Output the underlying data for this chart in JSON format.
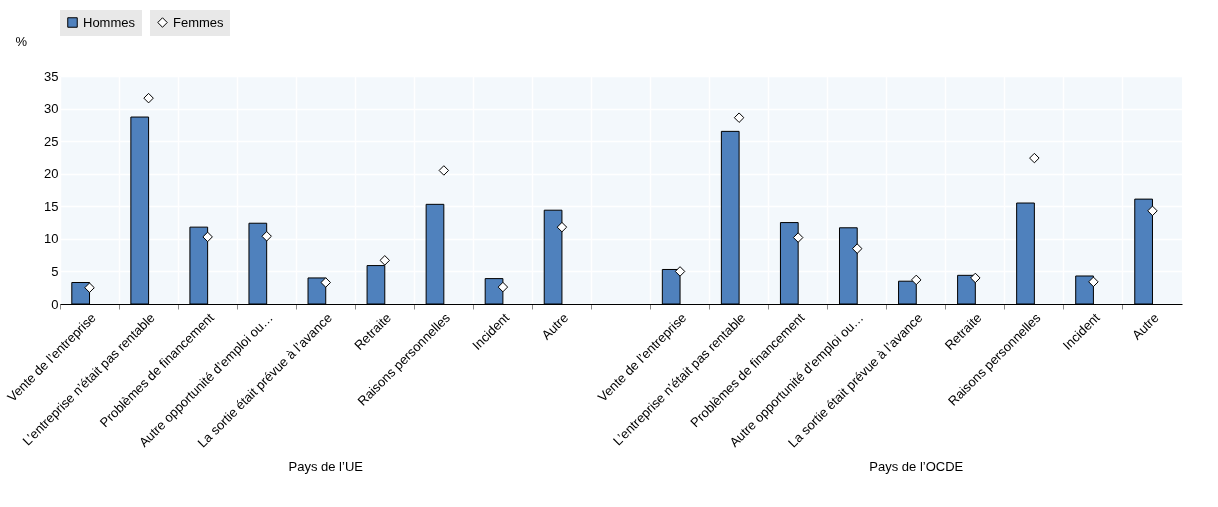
{
  "chart_data": {
    "type": "bar",
    "ylabel": "%",
    "categories": [
      "Vente de l’entreprise",
      "L’entreprise n’était pas rentable",
      "Problèmes de financement",
      "Autre opportunité d’emploi ou…",
      "La sortie était prévue à l’avance",
      "Retraite",
      "Raisons personnelles",
      "Incident",
      "Autre",
      null,
      "Vente de l’entreprise",
      "L’entreprise n’était pas rentable",
      "Problèmes de financement",
      "Autre opportunité d’emploi ou…",
      "La sortie était prévue à l’avance",
      "Retraite",
      "Raisons personnelles",
      "Incident",
      "Autre"
    ],
    "series": [
      {
        "name": "Hommes",
        "color": "#4f81bd",
        "values": [
          3.3,
          28.7,
          11.8,
          12.4,
          4.0,
          5.9,
          15.3,
          3.9,
          14.4,
          null,
          5.3,
          26.5,
          12.5,
          11.7,
          3.5,
          4.4,
          15.5,
          4.3,
          16.1
        ]
      },
      {
        "name": "Femmes",
        "type": "scatter",
        "color": "#ffffff",
        "marker": "diamond",
        "values": [
          2.5,
          31.6,
          10.3,
          10.4,
          3.3,
          6.7,
          20.5,
          2.6,
          11.8,
          null,
          5.0,
          28.6,
          10.2,
          8.5,
          3.7,
          4.0,
          22.4,
          3.4,
          14.3
        ]
      }
    ],
    "ylim": [
      0,
      35
    ],
    "yticks": [
      0,
      5,
      10,
      15,
      20,
      25,
      30,
      35
    ],
    "grid": true,
    "legend": "top",
    "annotations": [
      "Pays de l’UE",
      "Pays de l’OCDE"
    ]
  }
}
